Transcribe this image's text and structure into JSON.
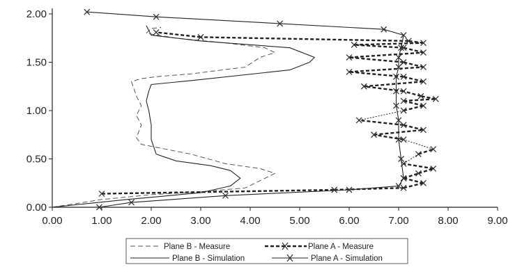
{
  "chart_data": {
    "type": "line",
    "title": "",
    "xlabel": "",
    "ylabel": "",
    "xlim": [
      0,
      9
    ],
    "ylim": [
      0,
      2
    ],
    "x_ticks": [
      "0.00",
      "1.00",
      "2.00",
      "3.00",
      "4.00",
      "5.00",
      "6.00",
      "7.00",
      "8.00",
      "9.00"
    ],
    "y_ticks": [
      "0.00",
      "0.50",
      "1.00",
      "1.50",
      "2.00"
    ],
    "grid": false,
    "legend_position": "bottom-center",
    "series": [
      {
        "name": "Plane B - Measure",
        "style": "dashed-thin",
        "color": "#555555",
        "x": [
          0.0,
          1.0,
          2.0,
          3.0,
          3.9,
          4.3,
          4.5,
          4.2,
          3.5,
          2.8,
          2.1,
          1.8,
          1.7,
          1.8,
          1.7,
          1.8,
          1.7,
          1.6,
          1.8,
          2.1,
          2.8,
          3.9,
          4.2,
          4.5,
          4.3,
          3.5,
          2.5,
          1.9,
          2.0,
          2.2
        ],
        "y": [
          0.0,
          0.08,
          0.13,
          0.16,
          0.2,
          0.3,
          0.35,
          0.4,
          0.45,
          0.55,
          0.62,
          0.65,
          0.72,
          0.85,
          0.95,
          1.05,
          1.15,
          1.3,
          1.33,
          1.35,
          1.38,
          1.45,
          1.55,
          1.6,
          1.65,
          1.7,
          1.75,
          1.8,
          1.85,
          1.86
        ]
      },
      {
        "name": "Plane B - Simulation",
        "style": "solid",
        "color": "#222222",
        "x": [
          0.0,
          1.5,
          3.0,
          3.6,
          3.8,
          3.6,
          3.2,
          2.5,
          2.1,
          2.0,
          2.0,
          1.95,
          1.9,
          1.95,
          2.0,
          2.8,
          4.8,
          5.2,
          5.3,
          4.8,
          3.0,
          2.0,
          1.9
        ],
        "y": [
          0.0,
          0.08,
          0.15,
          0.22,
          0.3,
          0.38,
          0.43,
          0.48,
          0.55,
          0.7,
          0.85,
          1.0,
          1.1,
          1.2,
          1.27,
          1.31,
          1.42,
          1.5,
          1.55,
          1.65,
          1.72,
          1.78,
          1.88
        ]
      },
      {
        "name": "Plane A - Measure",
        "style": "dashed-bold-x",
        "color": "#222222",
        "x": [
          1.0,
          5.7,
          7.1,
          7.5,
          7.1,
          7.4,
          7.7,
          7.1,
          7.4,
          7.7,
          7.1,
          6.5,
          7.5,
          7.1,
          6.2,
          7.1,
          7.5,
          7.1,
          7.75,
          7.45,
          7.1,
          6.3,
          7.5,
          7.1,
          6.0,
          7.5,
          7.1,
          6.0,
          7.5,
          7.1,
          6.1,
          7.5,
          7.2,
          3.0,
          2.1
        ],
        "y": [
          0.14,
          0.18,
          0.2,
          0.25,
          0.3,
          0.35,
          0.4,
          0.45,
          0.55,
          0.6,
          0.7,
          0.75,
          0.8,
          0.85,
          0.9,
          1.0,
          1.05,
          1.1,
          1.12,
          1.15,
          1.2,
          1.25,
          1.3,
          1.35,
          1.4,
          1.45,
          1.5,
          1.55,
          1.6,
          1.65,
          1.68,
          1.7,
          1.72,
          1.76,
          1.81
        ]
      },
      {
        "name": "Plane A - Simulation",
        "style": "solid-x",
        "color": "#222222",
        "x": [
          0.95,
          1.6,
          3.5,
          6.0,
          7.0,
          7.1,
          7.05,
          7.0,
          7.0,
          6.95,
          6.95,
          6.95,
          7.0,
          7.0,
          7.05,
          7.1,
          6.7,
          4.6,
          2.1,
          0.7
        ],
        "y": [
          0.0,
          0.05,
          0.12,
          0.18,
          0.22,
          0.3,
          0.5,
          0.7,
          0.9,
          1.05,
          1.2,
          1.35,
          1.45,
          1.55,
          1.65,
          1.78,
          1.84,
          1.9,
          1.97,
          2.02
        ]
      }
    ]
  },
  "legend": {
    "items": [
      {
        "label": "Plane B - Measure"
      },
      {
        "label": "Plane A - Measure"
      },
      {
        "label": "Plane B - Simulation"
      },
      {
        "label": "Plane A - Simulation"
      }
    ]
  }
}
